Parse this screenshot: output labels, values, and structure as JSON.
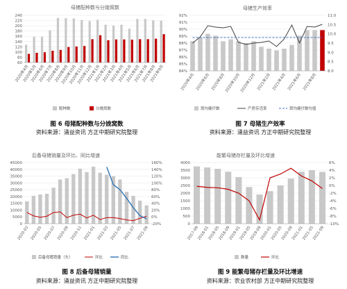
{
  "figures": [
    {
      "caption": "图 6 母猪配种数与分娩窝数",
      "source": "资料来源：涌益资讯 方正中期研究院整理"
    },
    {
      "caption": "图 7 母猪生产效率",
      "source": "资料来源：涌益资讯 方正中期研究院整理"
    },
    {
      "caption": "图 8 后备母猪销量",
      "source": "资料来源：涌益资讯 方正中期研究院整理"
    },
    {
      "caption": "图 9 能繁母猪存栏量及环比增速",
      "source": "资料来源：农业农村部 方正中期研究院整理"
    }
  ],
  "colors": {
    "grey_bar": "#c8c8c8",
    "red": "#c00000",
    "dark_line": "#404040",
    "blue": "#2e75b6",
    "blue_dash": "#4472c4"
  },
  "chart_data": [
    {
      "type": "bar",
      "title": "母猪配种数与分娩窝数",
      "categories": [
        "2020年4月",
        "2020年5月",
        "2020年6月",
        "2020年7月",
        "2020年8月",
        "2020年9月",
        "2020年10月",
        "2020年11月",
        "2020年12月",
        "2021年1月",
        "2021年2月",
        "2021年3月",
        "2021年4月",
        "2021年5月",
        "2021年6月",
        "2021年7月",
        "2021年8月",
        "2021年9月"
      ],
      "y_ticks": [
        "60",
        "80",
        "100",
        "120",
        "140",
        "160",
        "180",
        "200",
        "220",
        "240"
      ],
      "ylim": [
        60,
        240
      ],
      "series": [
        {
          "name": "配种数",
          "values": [
            128,
            158,
            158,
            183,
            230,
            229,
            228,
            222,
            218,
            223,
            204,
            201,
            204,
            189,
            226,
            226,
            221,
            219
          ]
        },
        {
          "name": "分娩窝数",
          "values": [
            93,
            97,
            99,
            105,
            108,
            119,
            121,
            123,
            149,
            164,
            145,
            148,
            148,
            147,
            149,
            149,
            151,
            168
          ]
        }
      ]
    },
    {
      "type": "bar",
      "title": "母猪生产效率",
      "categories": [
        "2020年4月",
        "2020年5月",
        "2020年6月",
        "2020年7月",
        "2020年8月",
        "2020年9月",
        "2020年10月",
        "2020年11月",
        "2020年12月",
        "2021年1月",
        "2021年2月",
        "2021年3月",
        "2021年4月",
        "2021年5月",
        "2021年6月",
        "2021年7月",
        "2021年8月",
        "2021年9月"
      ],
      "x_tick_labels": [
        "2020年4月",
        "2020年6月",
        "2020年8月",
        "2020年10月",
        "2020年12月",
        "2021年2月",
        "2021年4月",
        "2021年6月",
        "2021年8月"
      ],
      "y_left_ticks": [
        "84%",
        "85%",
        "86%",
        "87%",
        "88%",
        "89%",
        "90%",
        "91%",
        "92%"
      ],
      "y_right_ticks": [
        "8.0",
        "8.5",
        "9.0",
        "9.5",
        "10.0",
        "10.5",
        "11.0"
      ],
      "ylim_left": [
        84,
        92
      ],
      "ylim_right": [
        8.0,
        11.0
      ],
      "series": [
        {
          "name": "窝均健仔数",
          "axis": "right",
          "values": [
            9.6,
            9.8,
            10.0,
            9.9,
            9.6,
            9.7,
            9.6,
            9.5,
            9.6,
            9.3,
            9.2,
            9.1,
            9.2,
            9.4,
            9.9,
            10.2,
            10.2,
            10.2
          ]
        },
        {
          "name": "产房存活率",
          "axis": "left",
          "values": [
            88.0,
            88.9,
            90.5,
            90.3,
            90.2,
            90.4,
            88.1,
            87.8,
            88.0,
            88.1,
            88.3,
            87.5,
            88.6,
            90.6,
            88.0,
            90.4,
            90.3,
            90.7
          ]
        },
        {
          "name": "窝均健仔数均值",
          "axis": "right",
          "values": [
            9.8,
            9.8,
            9.8,
            9.8,
            9.8,
            9.8,
            9.8,
            9.8,
            9.8,
            9.8,
            9.8,
            9.8,
            9.8,
            9.8,
            9.8,
            9.8,
            9.8,
            9.8
          ]
        }
      ]
    },
    {
      "type": "bar",
      "title": "后备母猪销量及环比、同比增速",
      "categories": [
        "2020-03",
        "2020-04",
        "2020-05",
        "2020-06",
        "2020-07",
        "2020-08",
        "2020-09",
        "2020-10",
        "2020-11",
        "2020-12",
        "2021-01",
        "2021-02",
        "2021-03",
        "2021-04",
        "2021-05",
        "2021-06",
        "2021-07",
        "2021-08",
        "2021-09"
      ],
      "x_tick_labels": [
        "2020-03",
        "2020-05",
        "2020-07",
        "2020-09",
        "2020-11",
        "2021-01",
        "2021-03",
        "2021-05",
        "2021-07",
        "2021-09"
      ],
      "y_left_ticks": [
        "0",
        "5000",
        "10000",
        "15000",
        "20000",
        "25000",
        "30000",
        "35000",
        "40000",
        "45000"
      ],
      "y_right_ticks": [
        "-20%",
        "0%",
        "20%",
        "40%",
        "60%",
        "80%",
        "100%",
        "120%",
        "140%",
        "160%"
      ],
      "ylim_left": [
        0,
        45000
      ],
      "ylim_right": [
        -20,
        160
      ],
      "series": [
        {
          "name": "后备母猪销量（头）",
          "axis": "left",
          "values": [
            16500,
            20500,
            21500,
            22000,
            26500,
            32500,
            33500,
            36500,
            40500,
            38000,
            42000,
            37500,
            36000,
            35000,
            32500,
            23500,
            20500,
            17000,
            13500
          ]
        },
        {
          "name": "环比",
          "axis": "right",
          "values": [
            13,
            3,
            -1,
            2,
            13,
            15,
            -2,
            5,
            8,
            -3,
            5,
            -8,
            -2,
            -2,
            -5,
            -9,
            -11,
            -4,
            2
          ]
        },
        {
          "name": "同比",
          "axis": "right",
          "values": [
            null,
            null,
            null,
            null,
            null,
            null,
            null,
            null,
            null,
            null,
            null,
            null,
            147,
            95,
            80,
            55,
            27,
            4,
            -6
          ]
        }
      ]
    },
    {
      "type": "bar",
      "title": "能繁母猪存栏量及环比增速",
      "categories": [
        "2017-09",
        "2018-01",
        "2018-05",
        "2018-09",
        "2019-01",
        "2019-05",
        "2019-09",
        "2020-01",
        "2020-05",
        "2020-09",
        "2021-01",
        "2021-05",
        "2021-09"
      ],
      "y_left_ticks": [
        "0",
        "500",
        "1000",
        "1500",
        "2000",
        "2500",
        "3000",
        "3500",
        "4000"
      ],
      "y_right_ticks": [
        "-10%",
        "-8%",
        "-6%",
        "-4%",
        "-2%",
        "0%",
        "2%",
        "4%",
        "6%"
      ],
      "ylim_left": [
        0,
        4000
      ],
      "ylim_right": [
        -10,
        6
      ],
      "series": [
        {
          "name": "数量",
          "axis": "left",
          "values": [
            3750,
            3680,
            3590,
            3400,
            3050,
            2400,
            1910,
            2130,
            2500,
            2950,
            3400,
            3500,
            3390
          ]
        },
        {
          "name": "环比",
          "axis": "right",
          "values": [
            -0.2,
            -0.5,
            -0.6,
            -1.0,
            -2.0,
            -4.0,
            -9.0,
            2.0,
            3.0,
            4.5,
            2.5,
            1.2,
            -0.8
          ]
        }
      ]
    }
  ]
}
